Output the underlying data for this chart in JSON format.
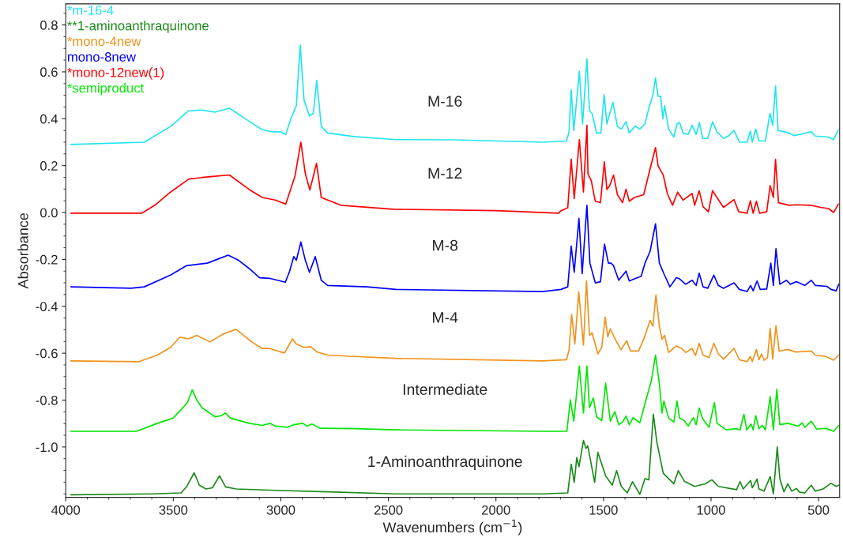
{
  "chart_data": {
    "type": "line",
    "xlabel": "Wavenumbers (cm$^{−1}$)",
    "ylabel": "Absorbance",
    "xlim": [
      4000,
      402
    ],
    "xticks": [
      4000,
      3500,
      3000,
      2500,
      2000,
      1500,
      1000,
      500
    ],
    "ylim": [
      -1.215,
      0.89
    ],
    "yticks": [
      0.8,
      0.6,
      0.4,
      0.2,
      {
        "value": 0,
        "label": "0.0"
      },
      -0.2,
      -0.4,
      -0.6,
      -0.8,
      {
        "value": -1,
        "label": "-1.0"
      }
    ],
    "legend": "top left",
    "annotations": [
      "M-16",
      "M-12",
      "M-8",
      "M-4",
      "Intermediate",
      "1-Aminoanthraquinone"
    ],
    "series": [
      {
        "name": "*m-16-4",
        "color": "#1fe5ee",
        "x": [
          3976,
          3635,
          3513,
          3428,
          3367,
          3306,
          3239,
          3147,
          3086,
          3038,
          3001,
          2977,
          2953,
          2928,
          2910,
          2892,
          2867,
          2849,
          2833,
          2812,
          2782,
          2660,
          2465,
          2200,
          1782,
          1672,
          1660,
          1650,
          1638,
          1612,
          1597,
          1577,
          1565,
          1553,
          1532,
          1512,
          1497,
          1484,
          1456,
          1435,
          1417,
          1395,
          1380,
          1353,
          1331,
          1307,
          1289,
          1270,
          1258,
          1246,
          1234,
          1224,
          1216,
          1197,
          1173,
          1158,
          1146,
          1130,
          1106,
          1088,
          1069,
          1054,
          1039,
          1015,
          993,
          972,
          942,
          917,
          893,
          868,
          832,
          817,
          808,
          792,
          777,
          747,
          726,
          713,
          700,
          688,
          637,
          613,
          534,
          515,
          454,
          430,
          408
        ],
        "values": [
          0.29,
          0.3,
          0.367,
          0.434,
          0.437,
          0.428,
          0.445,
          0.389,
          0.353,
          0.344,
          0.344,
          0.333,
          0.4,
          0.456,
          0.714,
          0.479,
          0.412,
          0.423,
          0.563,
          0.367,
          0.339,
          0.324,
          0.311,
          0.31,
          0.3,
          0.305,
          0.344,
          0.524,
          0.35,
          0.602,
          0.378,
          0.655,
          0.434,
          0.423,
          0.339,
          0.339,
          0.503,
          0.378,
          0.47,
          0.367,
          0.356,
          0.387,
          0.339,
          0.369,
          0.356,
          0.378,
          0.445,
          0.501,
          0.574,
          0.496,
          0.496,
          0.4,
          0.456,
          0.356,
          0.322,
          0.378,
          0.384,
          0.339,
          0.333,
          0.372,
          0.333,
          0.384,
          0.316,
          0.316,
          0.387,
          0.344,
          0.316,
          0.328,
          0.35,
          0.3,
          0.3,
          0.347,
          0.3,
          0.356,
          0.305,
          0.305,
          0.423,
          0.372,
          0.54,
          0.35,
          0.339,
          0.328,
          0.344,
          0.326,
          0.322,
          0.311,
          0.353
        ]
      },
      {
        "name": "**1-aminoanthraquinone",
        "color": "#1a8a1a",
        "x": [
          3976,
          3598,
          3464,
          3437,
          3403,
          3379,
          3348,
          3318,
          3285,
          3257,
          3208,
          3026,
          2782,
          2465,
          1782,
          1666,
          1650,
          1636,
          1624,
          1614,
          1593,
          1581,
          1573,
          1541,
          1526,
          1490,
          1459,
          1439,
          1417,
          1390,
          1365,
          1331,
          1307,
          1289,
          1268,
          1252,
          1222,
          1173,
          1152,
          1124,
          1076,
          1027,
          996,
          966,
          881,
          865,
          850,
          816,
          808,
          786,
          777,
          753,
          725,
          710,
          692,
          680,
          661,
          643,
          625,
          603,
          588,
          564,
          534,
          515,
          479,
          442,
          418,
          406
        ],
        "values": [
          -1.204,
          -1.2,
          -1.196,
          -1.168,
          -1.11,
          -1.163,
          -1.179,
          -1.174,
          -1.123,
          -1.17,
          -1.179,
          -1.185,
          -1.191,
          -1.2,
          -1.2,
          -1.196,
          -1.073,
          -1.151,
          -1.045,
          -1.084,
          -0.972,
          -1.006,
          -0.995,
          -1.151,
          -1.023,
          -1.123,
          -1.163,
          -1.101,
          -1.168,
          -1.196,
          -1.148,
          -1.202,
          -1.135,
          -1.14,
          -0.86,
          -0.978,
          -1.112,
          -1.157,
          -1.101,
          -1.146,
          -1.168,
          -1.157,
          -1.14,
          -1.168,
          -1.182,
          -1.148,
          -1.179,
          -1.143,
          -1.174,
          -1.137,
          -1.179,
          -1.188,
          -1.126,
          -1.2,
          -1.0,
          -1.135,
          -1.191,
          -1.157,
          -1.188,
          -1.177,
          -1.193,
          -1.196,
          -1.163,
          -1.188,
          -1.179,
          -1.155,
          -1.168,
          -1.163
        ]
      },
      {
        "name": "*mono-4new",
        "color": "#f0921a",
        "x": [
          3976,
          3659,
          3574,
          3513,
          3470,
          3428,
          3391,
          3330,
          3269,
          3208,
          3135,
          3086,
          3050,
          3026,
          2983,
          2946,
          2928,
          2892,
          2861,
          2831,
          2782,
          2660,
          2465,
          1782,
          1672,
          1660,
          1648,
          1633,
          1615,
          1593,
          1579,
          1565,
          1553,
          1526,
          1508,
          1492,
          1480,
          1468,
          1451,
          1419,
          1392,
          1374,
          1337,
          1313,
          1283,
          1270,
          1256,
          1240,
          1228,
          1216,
          1197,
          1161,
          1136,
          1118,
          1088,
          1072,
          1055,
          1037,
          1009,
          987,
          966,
          942,
          893,
          868,
          832,
          817,
          808,
          789,
          777,
          765,
          753,
          737,
          725,
          713,
          698,
          683,
          643,
          607,
          534,
          515,
          466,
          430,
          406
        ],
        "values": [
          -0.633,
          -0.636,
          -0.608,
          -0.575,
          -0.532,
          -0.539,
          -0.524,
          -0.552,
          -0.519,
          -0.498,
          -0.552,
          -0.58,
          -0.58,
          -0.588,
          -0.599,
          -0.539,
          -0.561,
          -0.575,
          -0.572,
          -0.595,
          -0.608,
          -0.614,
          -0.622,
          -0.633,
          -0.628,
          -0.586,
          -0.435,
          -0.561,
          -0.339,
          -0.566,
          -0.292,
          -0.524,
          -0.513,
          -0.603,
          -0.575,
          -0.446,
          -0.53,
          -0.496,
          -0.53,
          -0.586,
          -0.547,
          -0.591,
          -0.591,
          -0.541,
          -0.46,
          -0.485,
          -0.351,
          -0.485,
          -0.541,
          -0.524,
          -0.597,
          -0.569,
          -0.58,
          -0.597,
          -0.58,
          -0.61,
          -0.558,
          -0.608,
          -0.619,
          -0.558,
          -0.603,
          -0.625,
          -0.58,
          -0.628,
          -0.636,
          -0.614,
          -0.636,
          -0.584,
          -0.628,
          -0.603,
          -0.63,
          -0.619,
          -0.494,
          -0.625,
          -0.483,
          -0.591,
          -0.584,
          -0.595,
          -0.591,
          -0.608,
          -0.614,
          -0.63,
          -0.608
        ]
      },
      {
        "name": "mono-8new",
        "color": "#0000ff",
        "x": [
          3976,
          3696,
          3635,
          3513,
          3440,
          3342,
          3294,
          3245,
          3196,
          3147,
          3099,
          3050,
          3001,
          2979,
          2959,
          2940,
          2928,
          2907,
          2886,
          2867,
          2840,
          2812,
          2782,
          2599,
          2465,
          1782,
          1697,
          1666,
          1650,
          1636,
          1614,
          1599,
          1577,
          1563,
          1538,
          1514,
          1495,
          1477,
          1465,
          1453,
          1429,
          1395,
          1380,
          1356,
          1325,
          1307,
          1283,
          1258,
          1240,
          1219,
          1191,
          1161,
          1146,
          1118,
          1088,
          1069,
          1055,
          1037,
          1015,
          987,
          966,
          942,
          893,
          868,
          832,
          816,
          804,
          786,
          771,
          741,
          722,
          710,
          698,
          680,
          649,
          631,
          603,
          564,
          534,
          515,
          461,
          442,
          418,
          406
        ],
        "values": [
          -0.317,
          -0.323,
          -0.317,
          -0.267,
          -0.227,
          -0.216,
          -0.199,
          -0.182,
          -0.204,
          -0.239,
          -0.278,
          -0.281,
          -0.292,
          -0.297,
          -0.25,
          -0.188,
          -0.204,
          -0.126,
          -0.204,
          -0.255,
          -0.188,
          -0.289,
          -0.311,
          -0.317,
          -0.328,
          -0.337,
          -0.328,
          -0.317,
          -0.143,
          -0.255,
          -0.025,
          -0.261,
          0.031,
          -0.216,
          -0.3,
          -0.295,
          -0.135,
          -0.216,
          -0.216,
          -0.227,
          -0.289,
          -0.25,
          -0.292,
          -0.283,
          -0.272,
          -0.216,
          -0.165,
          -0.048,
          -0.216,
          -0.261,
          -0.317,
          -0.278,
          -0.283,
          -0.306,
          -0.289,
          -0.311,
          -0.259,
          -0.317,
          -0.323,
          -0.267,
          -0.311,
          -0.323,
          -0.3,
          -0.328,
          -0.337,
          -0.311,
          -0.334,
          -0.292,
          -0.328,
          -0.326,
          -0.216,
          -0.311,
          -0.154,
          -0.306,
          -0.289,
          -0.306,
          -0.295,
          -0.311,
          -0.289,
          -0.311,
          -0.315,
          -0.328,
          -0.334,
          -0.306
        ]
      },
      {
        "name": "*mono-12new(1)",
        "color": "#ff0000",
        "x": [
          3976,
          3647,
          3586,
          3513,
          3428,
          3318,
          3239,
          3147,
          3086,
          3026,
          2977,
          2934,
          2907,
          2886,
          2865,
          2834,
          2812,
          2721,
          2478,
          2000,
          1709,
          1697,
          1666,
          1650,
          1636,
          1612,
          1593,
          1577,
          1572,
          1557,
          1538,
          1514,
          1496,
          1484,
          1471,
          1453,
          1435,
          1411,
          1395,
          1380,
          1356,
          1313,
          1289,
          1258,
          1246,
          1222,
          1203,
          1179,
          1155,
          1130,
          1088,
          1076,
          1055,
          1037,
          1012,
          993,
          942,
          893,
          871,
          832,
          817,
          804,
          789,
          774,
          741,
          725,
          710,
          700,
          686,
          637,
          607,
          534,
          491,
          454,
          430,
          408
        ],
        "values": [
          -0.003,
          -0.003,
          0.031,
          0.087,
          0.143,
          0.154,
          0.16,
          0.098,
          0.064,
          0.053,
          0.036,
          0.156,
          0.3,
          0.165,
          0.096,
          0.21,
          0.064,
          0.031,
          0.014,
          0.008,
          -0.003,
          0.008,
          0.02,
          0.227,
          0.059,
          0.311,
          0.087,
          0.372,
          0.165,
          0.137,
          0.048,
          0.042,
          0.216,
          0.098,
          0.115,
          0.16,
          0.076,
          0.042,
          0.1,
          0.048,
          0.064,
          0.076,
          0.165,
          0.277,
          0.199,
          0.16,
          0.081,
          0.031,
          0.087,
          0.053,
          0.081,
          0.031,
          0.093,
          0.025,
          0.003,
          0.093,
          0.022,
          0.055,
          0.003,
          -0.003,
          0.05,
          -0.003,
          0.048,
          -0.003,
          0.003,
          0.115,
          0.064,
          0.227,
          0.042,
          0.031,
          0.033,
          0.031,
          0.022,
          0.017,
          0.0,
          0.036
        ]
      },
      {
        "name": "*semiproduct",
        "color": "#00e600",
        "x": [
          3976,
          3671,
          3574,
          3501,
          3464,
          3434,
          3412,
          3391,
          3367,
          3306,
          3275,
          3259,
          3233,
          3147,
          3086,
          3050,
          3026,
          2971,
          2940,
          2898,
          2879,
          2855,
          2819,
          2660,
          2465,
          1782,
          1670,
          1654,
          1638,
          1612,
          1593,
          1577,
          1565,
          1547,
          1532,
          1508,
          1490,
          1468,
          1447,
          1429,
          1411,
          1395,
          1380,
          1362,
          1331,
          1307,
          1277,
          1258,
          1240,
          1228,
          1219,
          1197,
          1173,
          1158,
          1146,
          1124,
          1106,
          1082,
          1069,
          1055,
          1039,
          1009,
          984,
          972,
          929,
          881,
          865,
          847,
          834,
          814,
          804,
          792,
          777,
          761,
          747,
          725,
          710,
          694,
          680,
          643,
          594,
          576,
          564,
          534,
          509,
          466,
          430,
          406
        ],
        "values": [
          -0.933,
          -0.933,
          -0.899,
          -0.877,
          -0.841,
          -0.81,
          -0.756,
          -0.799,
          -0.832,
          -0.871,
          -0.866,
          -0.855,
          -0.877,
          -0.899,
          -0.908,
          -0.899,
          -0.911,
          -0.916,
          -0.905,
          -0.899,
          -0.911,
          -0.902,
          -0.92,
          -0.922,
          -0.927,
          -0.933,
          -0.933,
          -0.799,
          -0.89,
          -0.655,
          -0.855,
          -0.655,
          -0.832,
          -0.79,
          -0.871,
          -0.888,
          -0.728,
          -0.89,
          -0.849,
          -0.905,
          -0.894,
          -0.868,
          -0.905,
          -0.875,
          -0.897,
          -0.815,
          -0.715,
          -0.608,
          -0.731,
          -0.855,
          -0.804,
          -0.877,
          -0.894,
          -0.804,
          -0.877,
          -0.888,
          -0.911,
          -0.875,
          -0.905,
          -0.834,
          -0.879,
          -0.916,
          -0.81,
          -0.899,
          -0.927,
          -0.922,
          -0.927,
          -0.86,
          -0.927,
          -0.902,
          -0.927,
          -0.866,
          -0.922,
          -0.908,
          -0.927,
          -0.785,
          -0.927,
          -0.754,
          -0.905,
          -0.899,
          -0.911,
          -0.897,
          -0.916,
          -0.89,
          -0.924,
          -0.92,
          -0.933,
          -0.908
        ]
      }
    ]
  }
}
